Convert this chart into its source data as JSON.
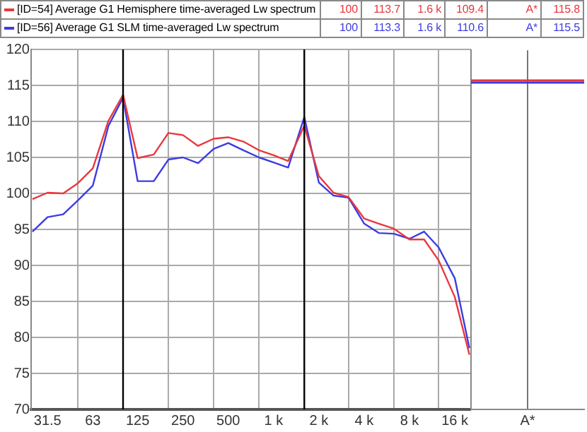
{
  "chart_data": [
    {
      "type": "line",
      "legend": "top",
      "log": "x",
      "marker": "none",
      "line_style": "solid",
      "grid": true,
      "x": [
        25,
        31.5,
        40,
        50,
        63,
        80,
        100,
        125,
        160,
        200,
        250,
        315,
        400,
        500,
        630,
        800,
        1000,
        1250,
        1600,
        2000,
        2500,
        3150,
        4000,
        5000,
        6300,
        8000,
        10000,
        12500,
        16000,
        20000
      ],
      "series": [
        {
          "name": "[ID=54] Average G1 Hemisphere time-averaged Lw spectrum",
          "color": "#e8383c",
          "values": [
            99.2,
            100.1,
            100.0,
            101.4,
            103.5,
            110.1,
            113.7,
            104.9,
            105.4,
            108.4,
            108.1,
            106.6,
            107.6,
            107.8,
            107.2,
            106.0,
            105.3,
            104.5,
            109.4,
            102.4,
            100.1,
            99.5,
            96.5,
            95.8,
            95.1,
            93.6,
            93.6,
            90.7,
            85.6,
            77.6
          ]
        },
        {
          "name": "[ID=56] Average G1 SLM time-averaged Lw spectrum",
          "color": "#3c3ce0",
          "values": [
            94.7,
            96.7,
            97.1,
            99.0,
            101.1,
            109.4,
            113.3,
            101.7,
            101.7,
            104.7,
            105.0,
            104.2,
            106.2,
            107.0,
            106.0,
            105.0,
            104.3,
            103.6,
            110.6,
            101.5,
            99.7,
            99.4,
            95.8,
            94.5,
            94.4,
            93.7,
            94.7,
            92.5,
            88.2,
            78.5
          ]
        }
      ],
      "xlim": [
        24.5,
        20500
      ],
      "xticks": [
        {
          "value": 31.5,
          "label": "31.5"
        },
        {
          "value": 50,
          "label": null
        },
        {
          "value": 63,
          "label": "63"
        },
        {
          "value": 125,
          "label": "125"
        },
        {
          "value": 200,
          "label": null
        },
        {
          "value": 250,
          "label": "250"
        },
        {
          "value": 400,
          "label": null
        },
        {
          "value": 500,
          "label": "500"
        },
        {
          "value": 800,
          "label": null
        },
        {
          "value": 1000,
          "label": "1 k"
        },
        {
          "value": 2000,
          "label": "2 k"
        },
        {
          "value": 3150,
          "label": null
        },
        {
          "value": 4000,
          "label": "4 k"
        },
        {
          "value": 6300,
          "label": null
        },
        {
          "value": 8000,
          "label": "8 k"
        },
        {
          "value": 12500,
          "label": null
        },
        {
          "value": 16000,
          "label": "16 k"
        }
      ],
      "ylim": [
        70,
        120
      ],
      "yticks": [
        70,
        75,
        80,
        85,
        90,
        95,
        100,
        105,
        110,
        115,
        120
      ],
      "ref_lines": [
        {
          "axis": "x",
          "value": 100,
          "color": "#000000"
        },
        {
          "axis": "x",
          "value": 1600,
          "color": "#000000"
        }
      ],
      "annotations": [
        "100",
        "113.7",
        "1.6 k",
        "109.4",
        "A*",
        "115.8",
        "100",
        "113.3",
        "1.6 k",
        "110.6",
        "A*",
        "115.5"
      ]
    },
    {
      "type": "line",
      "categories": [
        "A*"
      ],
      "tick_labels": "x",
      "grid": "x",
      "ref_lines": [
        {
          "axis": "y",
          "value": 115.8,
          "color": "#e8383c"
        },
        {
          "axis": "y",
          "value": 115.5,
          "color": "#3c3ce0"
        }
      ],
      "ylim": [
        70,
        120
      ],
      "yticks": [
        70,
        75,
        80,
        85,
        90,
        95,
        100,
        105,
        110,
        115,
        120
      ]
    }
  ]
}
